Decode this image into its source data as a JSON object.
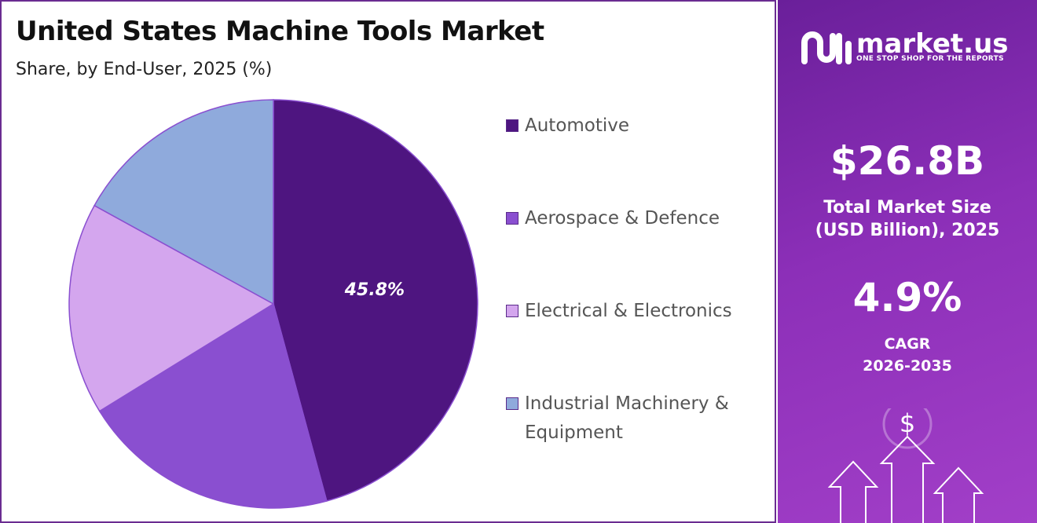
{
  "chart_data": {
    "type": "pie",
    "title": "United States Machine Tools Market",
    "subtitle": "Share, by End-User, 2025 (%)",
    "categories": [
      "Automotive",
      "Aerospace & Defence",
      "Electrical & Electronics",
      "Industrial Machinery & Equipment"
    ],
    "values": [
      45.8,
      20.4,
      16.8,
      17.0
    ],
    "value_labels": [
      "45.8%",
      null,
      null,
      null
    ],
    "colors": [
      "#4e1580",
      "#8a4fd0",
      "#d4a6ee",
      "#8faadc"
    ]
  },
  "panel": {
    "logo": "market.us",
    "tagline": "ONE STOP SHOP FOR THE REPORTS",
    "market_size": "$26.8B",
    "market_size_label": "Total Market Size (USD Billion), 2025",
    "cagr": "4.9%",
    "cagr_label": "CAGR 2026-2035"
  }
}
